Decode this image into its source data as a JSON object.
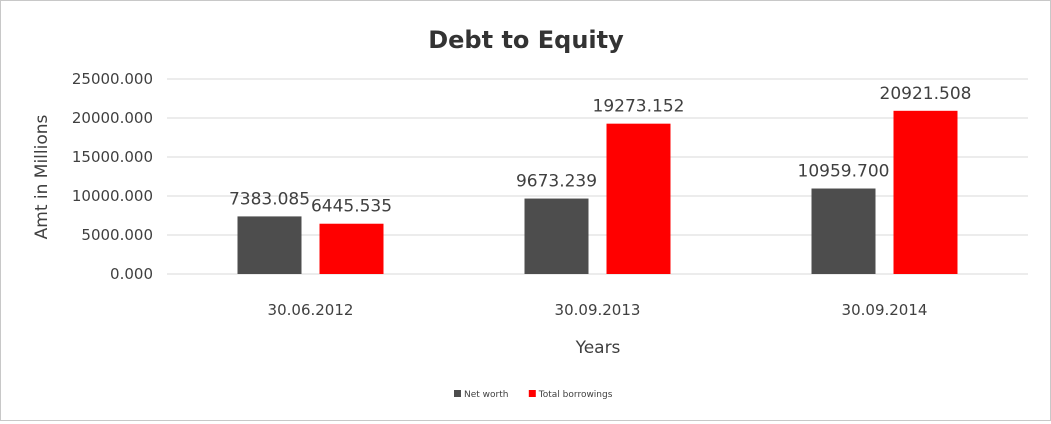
{
  "chart_data": {
    "type": "bar",
    "title": "Debt to Equity",
    "xlabel": "Years",
    "ylabel": "Amt in Millions",
    "categories": [
      "30.06.2012",
      "30.09.2013",
      "30.09.2014"
    ],
    "series": [
      {
        "name": "Net worth",
        "color": "#4d4d4d",
        "values": [
          7383.085,
          9673.239,
          10959.7
        ],
        "labels": [
          "7383.085",
          "9673.239",
          "10959.700"
        ]
      },
      {
        "name": "Total borrowings",
        "color": "#ff0000",
        "values": [
          6445.535,
          19273.152,
          20921.508
        ],
        "labels": [
          "6445.535",
          "19273.152",
          "20921.508"
        ]
      }
    ],
    "ylim": [
      0,
      25000
    ],
    "yticks": [
      0,
      5000,
      10000,
      15000,
      20000,
      25000
    ],
    "ytick_labels": [
      "0.000",
      "5000.000",
      "10000.000",
      "15000.000",
      "20000.000",
      "25000.000"
    ],
    "grid": true,
    "legend_position": "bottom"
  }
}
